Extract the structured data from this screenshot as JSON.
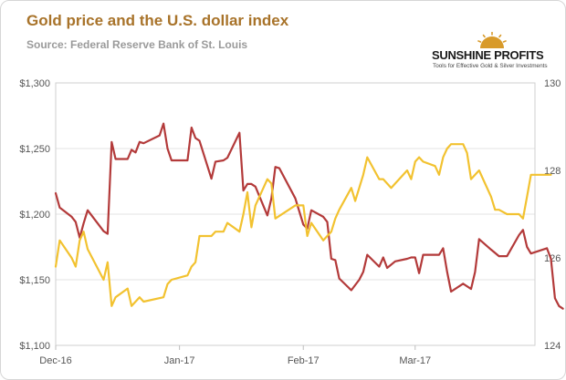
{
  "header": {
    "title": "Gold price and the U.S. dollar index",
    "source": "Source: Federal Reserve Bank of St. Louis"
  },
  "logo": {
    "name_part1": "SUNSHINE",
    "name_part2": " PROFITS",
    "tagline": "Tools for Effective Gold & Silver Investments",
    "colors": {
      "name": "#1a1a1a",
      "sun": "#d89a2a"
    }
  },
  "chart_data": {
    "type": "line",
    "title": "Gold price and the U.S. dollar index",
    "x_tick_labels": [
      "Dec-16",
      "Jan-17",
      "Feb-17",
      "Mar-17"
    ],
    "x_tick_dates": [
      "2016-12-01",
      "2017-01-01",
      "2017-02-01",
      "2017-03-01"
    ],
    "x_range": [
      "2016-12-01",
      "2017-03-31"
    ],
    "y_left": {
      "ticks": [
        1100,
        1150,
        1200,
        1250,
        1300
      ],
      "tick_labels": [
        "$1,100",
        "$1,150",
        "$1,200",
        "$1,250",
        "$1,300"
      ],
      "range": [
        1100,
        1300
      ]
    },
    "y_right": {
      "ticks": [
        124,
        126,
        128,
        130
      ],
      "tick_labels": [
        "124",
        "126",
        "128",
        "130"
      ],
      "range": [
        124,
        130
      ]
    },
    "grid": "horizontal",
    "legend": "none",
    "series": [
      {
        "color": "#b33a3a",
        "axis": "left",
        "points": [
          [
            "2016-12-01",
            1216
          ],
          [
            "2016-12-02",
            1205
          ],
          [
            "2016-12-05",
            1198
          ],
          [
            "2016-12-06",
            1194
          ],
          [
            "2016-12-07",
            1182
          ],
          [
            "2016-12-08",
            1193
          ],
          [
            "2016-12-09",
            1203
          ],
          [
            "2016-12-13",
            1187
          ],
          [
            "2016-12-14",
            1185
          ],
          [
            "2016-12-15",
            1255
          ],
          [
            "2016-12-16",
            1242
          ],
          [
            "2016-12-19",
            1242
          ],
          [
            "2016-12-20",
            1249
          ],
          [
            "2016-12-21",
            1247
          ],
          [
            "2016-12-22",
            1255
          ],
          [
            "2016-12-23",
            1254
          ],
          [
            "2016-12-27",
            1260
          ],
          [
            "2016-12-28",
            1269
          ],
          [
            "2016-12-29",
            1250
          ],
          [
            "2016-12-30",
            1241
          ],
          [
            "2017-01-03",
            1241
          ],
          [
            "2017-01-04",
            1266
          ],
          [
            "2017-01-05",
            1258
          ],
          [
            "2017-01-06",
            1256
          ],
          [
            "2017-01-09",
            1227
          ],
          [
            "2017-01-10",
            1240
          ],
          [
            "2017-01-12",
            1241
          ],
          [
            "2017-01-13",
            1243
          ],
          [
            "2017-01-16",
            1262
          ],
          [
            "2017-01-17",
            1218
          ],
          [
            "2017-01-18",
            1223
          ],
          [
            "2017-01-19",
            1223
          ],
          [
            "2017-01-20",
            1221
          ],
          [
            "2017-01-23",
            1199
          ],
          [
            "2017-01-24",
            1212
          ],
          [
            "2017-01-25",
            1236
          ],
          [
            "2017-01-26",
            1235
          ],
          [
            "2017-01-30",
            1212
          ],
          [
            "2017-02-01",
            1192
          ],
          [
            "2017-02-02",
            1189
          ],
          [
            "2017-02-03",
            1203
          ],
          [
            "2017-02-06",
            1198
          ],
          [
            "2017-02-07",
            1194
          ],
          [
            "2017-02-08",
            1166
          ],
          [
            "2017-02-09",
            1165
          ],
          [
            "2017-02-10",
            1151
          ],
          [
            "2017-02-13",
            1142
          ],
          [
            "2017-02-15",
            1150
          ],
          [
            "2017-02-16",
            1156
          ],
          [
            "2017-02-17",
            1169
          ],
          [
            "2017-02-20",
            1160
          ],
          [
            "2017-02-21",
            1167
          ],
          [
            "2017-02-22",
            1159
          ],
          [
            "2017-02-24",
            1164
          ],
          [
            "2017-02-27",
            1166
          ],
          [
            "2017-02-28",
            1167
          ],
          [
            "2017-03-01",
            1167
          ],
          [
            "2017-03-02",
            1155
          ],
          [
            "2017-03-03",
            1169
          ],
          [
            "2017-03-06",
            1169
          ],
          [
            "2017-03-07",
            1169
          ],
          [
            "2017-03-08",
            1174
          ],
          [
            "2017-03-09",
            1156
          ],
          [
            "2017-03-10",
            1141
          ],
          [
            "2017-03-13",
            1147
          ],
          [
            "2017-03-15",
            1143
          ],
          [
            "2017-03-16",
            1156
          ],
          [
            "2017-03-17",
            1181
          ],
          [
            "2017-03-20",
            1173
          ],
          [
            "2017-03-22",
            1168
          ],
          [
            "2017-03-24",
            1168
          ],
          [
            "2017-03-27",
            1184
          ],
          [
            "2017-03-28",
            1188
          ],
          [
            "2017-03-29",
            1175
          ],
          [
            "2017-03-30",
            1170
          ],
          [
            "2017-04-03",
            1174
          ],
          [
            "2017-04-04",
            1166
          ],
          [
            "2017-04-05",
            1136
          ],
          [
            "2017-04-06",
            1130
          ],
          [
            "2017-04-07",
            1128
          ]
        ]
      },
      {
        "color": "#f2c230",
        "axis": "right",
        "points": [
          [
            "2016-12-01",
            125.8
          ],
          [
            "2016-12-02",
            126.4
          ],
          [
            "2016-12-05",
            126.0
          ],
          [
            "2016-12-06",
            125.8
          ],
          [
            "2016-12-07",
            126.4
          ],
          [
            "2016-12-08",
            126.6
          ],
          [
            "2016-12-09",
            126.2
          ],
          [
            "2016-12-13",
            125.5
          ],
          [
            "2016-12-14",
            125.9
          ],
          [
            "2016-12-15",
            124.9
          ],
          [
            "2016-12-16",
            125.1
          ],
          [
            "2016-12-19",
            125.3
          ],
          [
            "2016-12-20",
            124.9
          ],
          [
            "2016-12-21",
            125.0
          ],
          [
            "2016-12-22",
            125.1
          ],
          [
            "2016-12-23",
            125.0
          ],
          [
            "2016-12-28",
            125.1
          ],
          [
            "2016-12-29",
            125.4
          ],
          [
            "2016-12-30",
            125.5
          ],
          [
            "2017-01-03",
            125.6
          ],
          [
            "2017-01-04",
            125.8
          ],
          [
            "2017-01-05",
            125.9
          ],
          [
            "2017-01-06",
            126.5
          ],
          [
            "2017-01-09",
            126.5
          ],
          [
            "2017-01-10",
            126.6
          ],
          [
            "2017-01-12",
            126.6
          ],
          [
            "2017-01-13",
            126.8
          ],
          [
            "2017-01-16",
            126.6
          ],
          [
            "2017-01-17",
            127.0
          ],
          [
            "2017-01-18",
            127.5
          ],
          [
            "2017-01-19",
            126.7
          ],
          [
            "2017-01-20",
            127.2
          ],
          [
            "2017-01-23",
            127.8
          ],
          [
            "2017-01-24",
            127.7
          ],
          [
            "2017-01-25",
            126.9
          ],
          [
            "2017-01-30",
            127.2
          ],
          [
            "2017-02-01",
            127.2
          ],
          [
            "2017-02-02",
            126.5
          ],
          [
            "2017-02-03",
            126.8
          ],
          [
            "2017-02-06",
            126.4
          ],
          [
            "2017-02-08",
            126.6
          ],
          [
            "2017-02-09",
            126.9
          ],
          [
            "2017-02-10",
            127.1
          ],
          [
            "2017-02-13",
            127.6
          ],
          [
            "2017-02-14",
            127.3
          ],
          [
            "2017-02-15",
            127.6
          ],
          [
            "2017-02-16",
            127.9
          ],
          [
            "2017-02-17",
            128.3
          ],
          [
            "2017-02-20",
            127.8
          ],
          [
            "2017-02-21",
            127.8
          ],
          [
            "2017-02-23",
            127.6
          ],
          [
            "2017-02-24",
            127.7
          ],
          [
            "2017-02-27",
            128.0
          ],
          [
            "2017-02-28",
            127.8
          ],
          [
            "2017-03-01",
            128.2
          ],
          [
            "2017-03-02",
            128.3
          ],
          [
            "2017-03-03",
            128.2
          ],
          [
            "2017-03-06",
            128.1
          ],
          [
            "2017-03-07",
            127.9
          ],
          [
            "2017-03-08",
            128.3
          ],
          [
            "2017-03-09",
            128.5
          ],
          [
            "2017-03-10",
            128.6
          ],
          [
            "2017-03-13",
            128.6
          ],
          [
            "2017-03-14",
            128.4
          ],
          [
            "2017-03-15",
            127.8
          ],
          [
            "2017-03-16",
            127.9
          ],
          [
            "2017-03-17",
            128.0
          ],
          [
            "2017-03-20",
            127.4
          ],
          [
            "2017-03-21",
            127.1
          ],
          [
            "2017-03-22",
            127.1
          ],
          [
            "2017-03-24",
            127.0
          ],
          [
            "2017-03-27",
            127.0
          ],
          [
            "2017-03-28",
            126.9
          ],
          [
            "2017-03-29",
            127.4
          ],
          [
            "2017-03-30",
            127.9
          ],
          [
            "2017-04-03",
            127.9
          ],
          [
            "2017-04-04",
            127.9
          ]
        ]
      }
    ]
  }
}
